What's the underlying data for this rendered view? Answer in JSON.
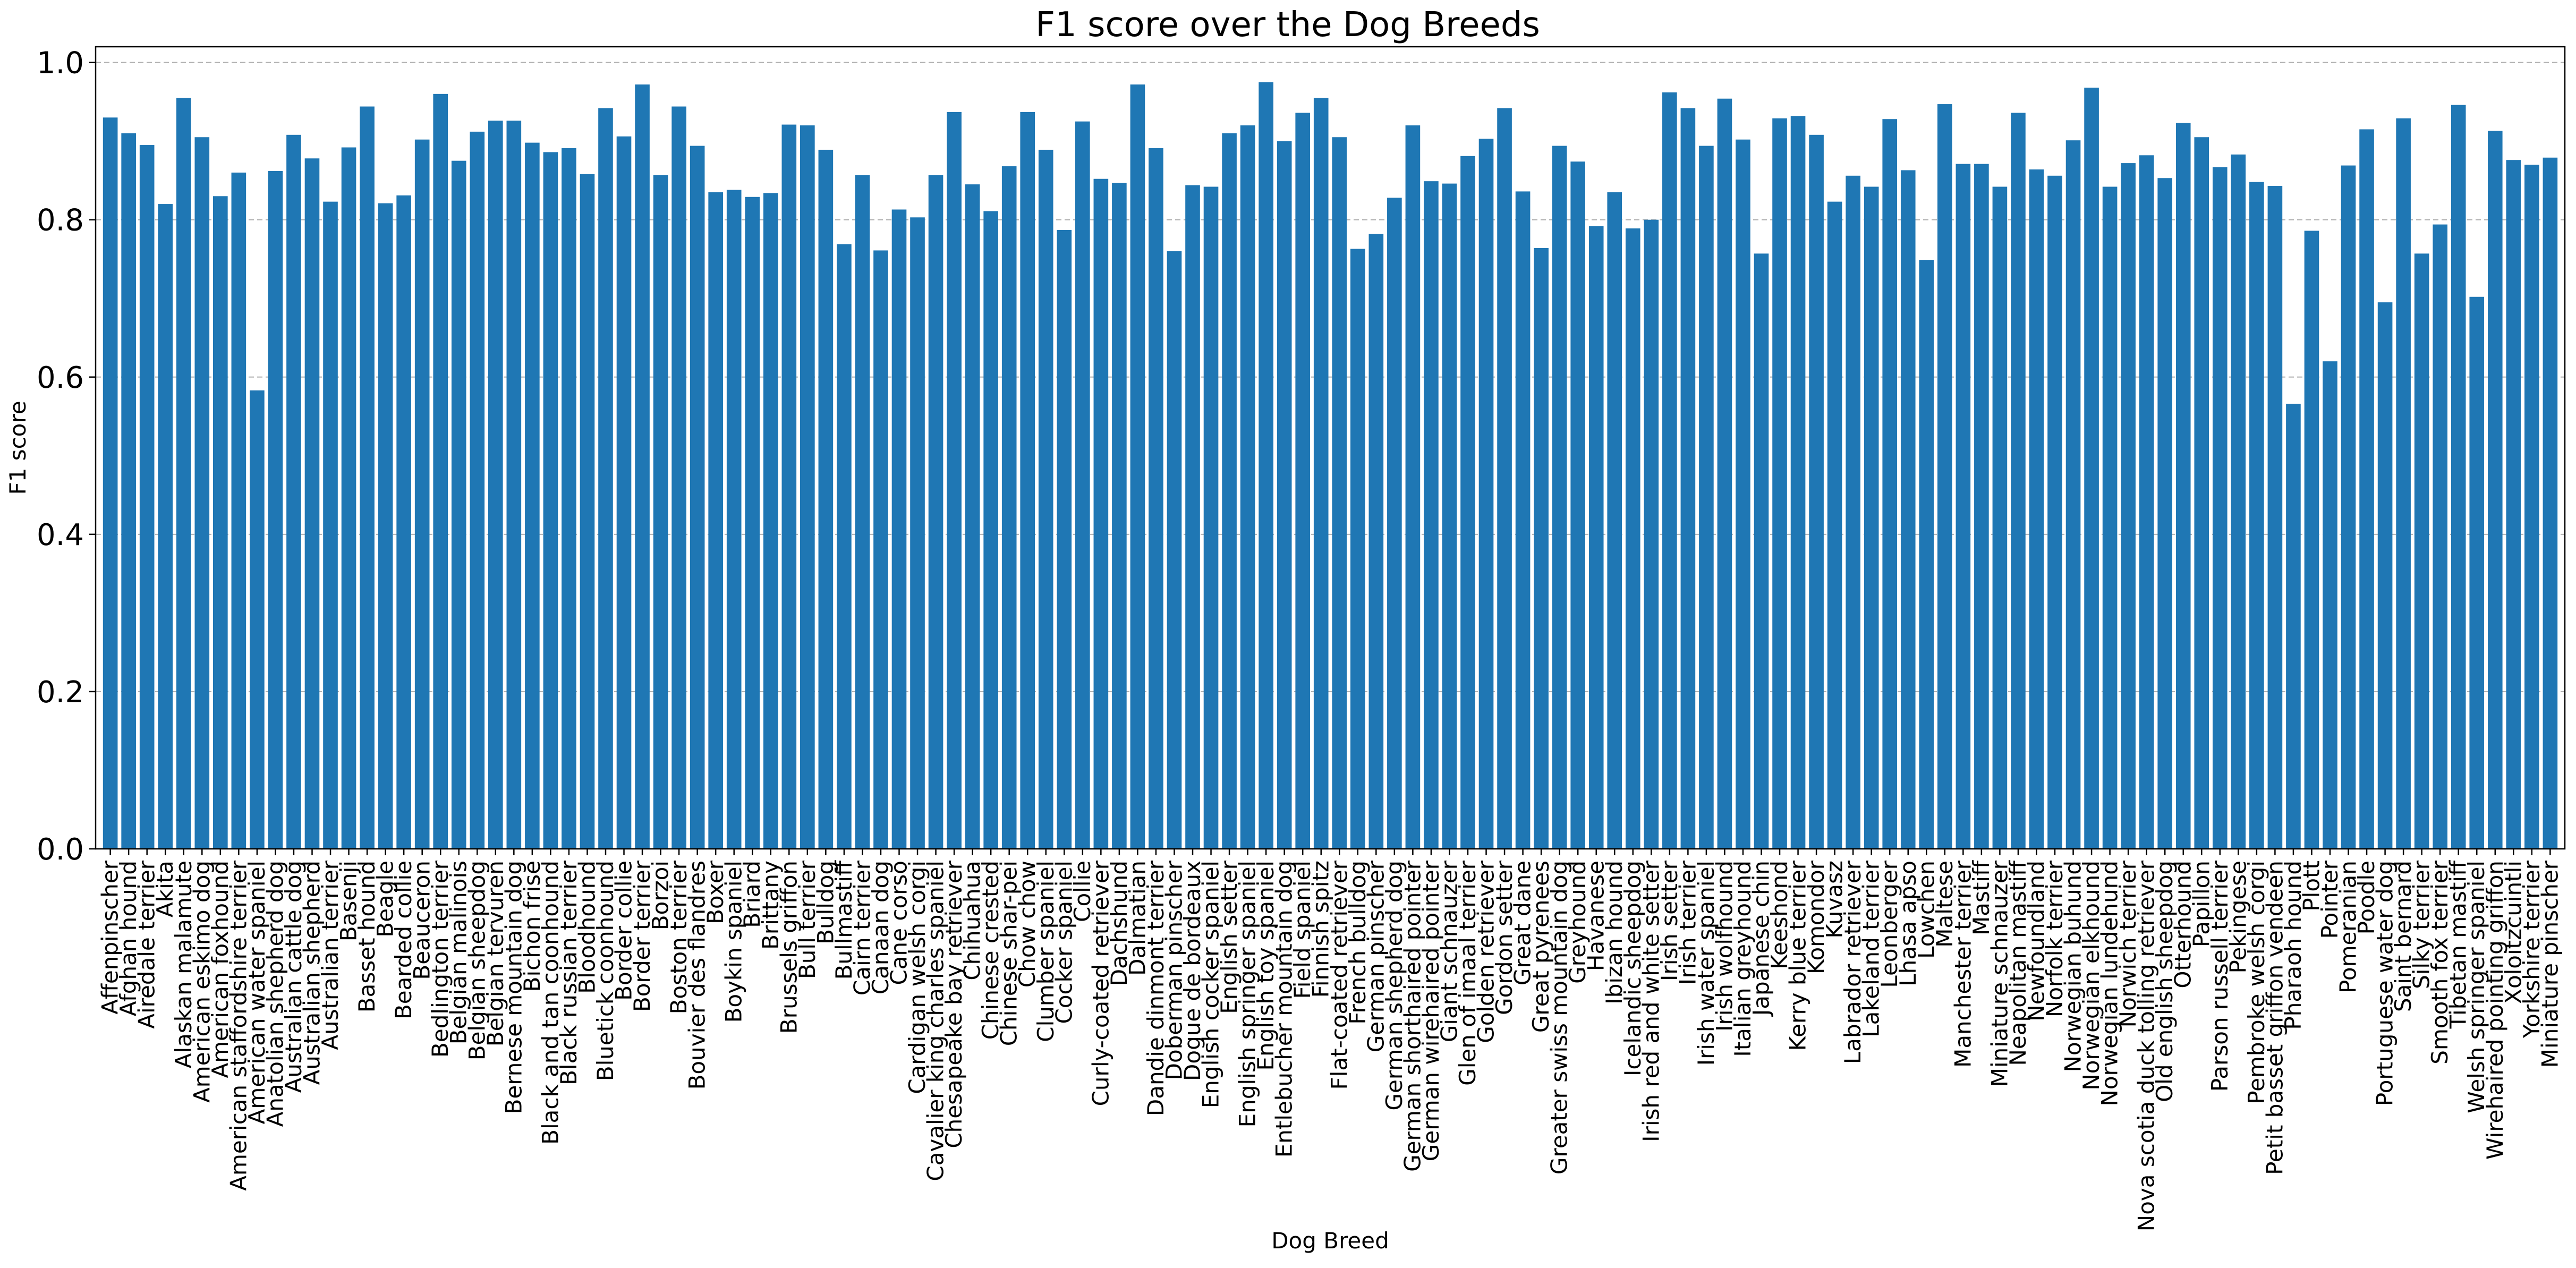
{
  "chart_data": {
    "type": "bar",
    "title": "F1 score over the Dog Breeds",
    "xlabel": "Dog Breed",
    "ylabel": "F1 score",
    "ylim": [
      0.0,
      1.02
    ],
    "yticks": [
      0.0,
      0.2,
      0.4,
      0.6,
      0.8,
      1.0
    ],
    "ytick_labels": [
      "0.0",
      "0.2",
      "0.4",
      "0.6",
      "0.8",
      "1.0"
    ],
    "grid": "horizontal-dashed",
    "bar_color": "#1f77b4",
    "categories": [
      "Affenpinscher",
      "Afghan hound",
      "Airedale terrier",
      "Akita",
      "Alaskan malamute",
      "American eskimo dog",
      "American foxhound",
      "American staffordshire terrier",
      "American water spaniel",
      "Anatolian shepherd dog",
      "Australian cattle dog",
      "Australian shepherd",
      "Australian terrier",
      "Basenji",
      "Basset hound",
      "Beagle",
      "Bearded collie",
      "Beauceron",
      "Bedlington terrier",
      "Belgian malinois",
      "Belgian sheepdog",
      "Belgian tervuren",
      "Bernese mountain dog",
      "Bichon frise",
      "Black and tan coonhound",
      "Black russian terrier",
      "Bloodhound",
      "Bluetick coonhound",
      "Border collie",
      "Border terrier",
      "Borzoi",
      "Boston terrier",
      "Bouvier des flandres",
      "Boxer",
      "Boykin spaniel",
      "Briard",
      "Brittany",
      "Brussels griffon",
      "Bull terrier",
      "Bulldog",
      "Bullmastiff",
      "Cairn terrier",
      "Canaan dog",
      "Cane corso",
      "Cardigan welsh corgi",
      "Cavalier king charles spaniel",
      "Chesapeake bay retriever",
      "Chihuahua",
      "Chinese crested",
      "Chinese shar-pei",
      "Chow chow",
      "Clumber spaniel",
      "Cocker spaniel",
      "Collie",
      "Curly-coated retriever",
      "Dachshund",
      "Dalmatian",
      "Dandie dinmont terrier",
      "Doberman pinscher",
      "Dogue de bordeaux",
      "English cocker spaniel",
      "English setter",
      "English springer spaniel",
      "English toy spaniel",
      "Entlebucher mountain dog",
      "Field spaniel",
      "Finnish spitz",
      "Flat-coated retriever",
      "French bulldog",
      "German pinscher",
      "German shepherd dog",
      "German shorthaired pointer",
      "German wirehaired pointer",
      "Giant schnauzer",
      "Glen of imaal terrier",
      "Golden retriever",
      "Gordon setter",
      "Great dane",
      "Great pyrenees",
      "Greater swiss mountain dog",
      "Greyhound",
      "Havanese",
      "Ibizan hound",
      "Icelandic sheepdog",
      "Irish red and white setter",
      "Irish setter",
      "Irish terrier",
      "Irish water spaniel",
      "Irish wolfhound",
      "Italian greyhound",
      "Japanese chin",
      "Keeshond",
      "Kerry blue terrier",
      "Komondor",
      "Kuvasz",
      "Labrador retriever",
      "Lakeland terrier",
      "Leonberger",
      "Lhasa apso",
      "Lowchen",
      "Maltese",
      "Manchester terrier",
      "Mastiff",
      "Miniature schnauzer",
      "Neapolitan mastiff",
      "Newfoundland",
      "Norfolk terrier",
      "Norwegian buhund",
      "Norwegian elkhound",
      "Norwegian lundehund",
      "Norwich terrier",
      "Nova scotia duck tolling retriever",
      "Old english sheepdog",
      "Otterhound",
      "Papillon",
      "Parson russell terrier",
      "Pekingese",
      "Pembroke welsh corgi",
      "Petit basset griffon vendeen",
      "Pharaoh hound",
      "Plott",
      "Pointer",
      "Pomeranian",
      "Poodle",
      "Portuguese water dog",
      "Saint bernard",
      "Silky terrier",
      "Smooth fox terrier",
      "Tibetan mastiff",
      "Welsh springer spaniel",
      "Wirehaired pointing griffon",
      "Xoloitzcuintli",
      "Yorkshire terrier",
      "Miniature pinscher"
    ],
    "values": [
      0.93,
      0.91,
      0.895,
      0.82,
      0.955,
      0.905,
      0.83,
      0.86,
      0.583,
      0.862,
      0.908,
      0.878,
      0.823,
      0.892,
      0.944,
      0.821,
      0.831,
      0.902,
      0.96,
      0.875,
      0.912,
      0.926,
      0.926,
      0.898,
      0.886,
      0.891,
      0.858,
      0.942,
      0.906,
      0.972,
      0.857,
      0.944,
      0.894,
      0.835,
      0.838,
      0.829,
      0.834,
      0.921,
      0.92,
      0.889,
      0.769,
      0.857,
      0.761,
      0.813,
      0.803,
      0.857,
      0.937,
      0.845,
      0.811,
      0.868,
      0.937,
      0.889,
      0.787,
      0.925,
      0.852,
      0.847,
      0.972,
      0.891,
      0.76,
      0.844,
      0.842,
      0.91,
      0.92,
      0.975,
      0.9,
      0.936,
      0.955,
      0.905,
      0.763,
      0.782,
      0.828,
      0.92,
      0.849,
      0.846,
      0.881,
      0.903,
      0.942,
      0.836,
      0.764,
      0.894,
      0.874,
      0.792,
      0.835,
      0.789,
      0.8,
      0.962,
      0.942,
      0.894,
      0.954,
      0.902,
      0.757,
      0.929,
      0.932,
      0.908,
      0.823,
      0.856,
      0.842,
      0.928,
      0.863,
      0.749,
      0.947,
      0.871,
      0.871,
      0.842,
      0.936,
      0.864,
      0.856,
      0.901,
      0.968,
      0.842,
      0.872,
      0.882,
      0.853,
      0.923,
      0.905,
      0.867,
      0.883,
      0.848,
      0.843,
      0.566,
      0.786,
      0.62,
      0.869,
      0.915,
      0.695,
      0.929,
      0.757,
      0.794,
      0.946,
      0.702,
      0.913,
      0.876,
      0.87,
      0.879
    ]
  }
}
